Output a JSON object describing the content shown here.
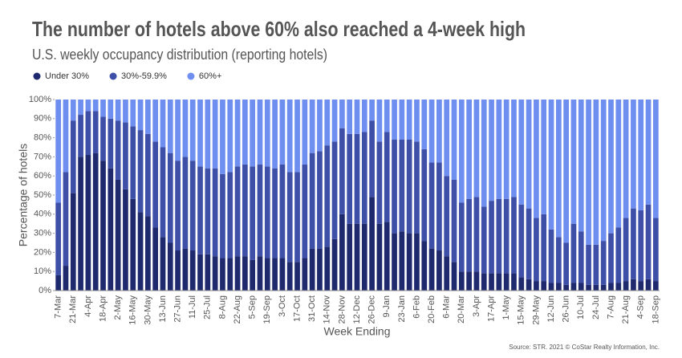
{
  "chart_data": {
    "type": "stacked_bar",
    "title": "The number of hotels above 60% also reached a 4-week high",
    "subtitle": "U.S. weekly occupancy distribution (reporting hotels)",
    "x_label": "Week Ending",
    "y_label": "Percentage of hotels",
    "source": "Source: STR. 2021 © CoStar Realty Information, Inc.",
    "categories": [
      "7-Mar",
      null,
      "21-Mar",
      null,
      "4-Apr",
      null,
      "18-Apr",
      null,
      "2-May",
      null,
      "16-May",
      null,
      "30-May",
      null,
      "13-Jun",
      null,
      "27-Jun",
      null,
      "11-Jul",
      null,
      "25-Jul",
      null,
      "8-Aug",
      null,
      "22-Aug",
      null,
      "5-Sep",
      null,
      "19-Sep",
      null,
      "3-Oct",
      null,
      "17-Oct",
      null,
      "31-Oct",
      null,
      "14-Nov",
      null,
      "28-Nov",
      null,
      "12-Dec",
      null,
      "26-Dec",
      null,
      "9-Jan",
      null,
      "23-Jan",
      null,
      "6-Feb",
      null,
      "20-Feb",
      null,
      "6-Mar",
      null,
      "20-Mar",
      null,
      "3-Apr",
      null,
      "17-Apr",
      null,
      "1-May",
      null,
      "15-May",
      null,
      "29-May",
      null,
      "12-Jun",
      null,
      "26-Jun",
      null,
      "10-Jul",
      null,
      "24-Jul",
      null,
      "7-Aug",
      null,
      "21-Aug",
      null,
      "4-Sep",
      null,
      "18-Sep"
    ],
    "series": [
      {
        "name": "Under 30%",
        "color": "#1f2a6e",
        "values": [
          8,
          13,
          51,
          70,
          71,
          72,
          68,
          64,
          58,
          53,
          48,
          41,
          39,
          33,
          28,
          25,
          21,
          22,
          21,
          19,
          19,
          18,
          17,
          17,
          18,
          18,
          16,
          18,
          17,
          17,
          17,
          15,
          15,
          17,
          22,
          22,
          23,
          27,
          40,
          35,
          35,
          35,
          49,
          35,
          36,
          30,
          31,
          30,
          30,
          26,
          22,
          21,
          18,
          15,
          10,
          10,
          10,
          9,
          9,
          9,
          9,
          9,
          7,
          6,
          5,
          5,
          4,
          4,
          3,
          4,
          4,
          3,
          3,
          3,
          4,
          4,
          5,
          6,
          5,
          6,
          5
        ]
      },
      {
        "name": "30%-59.9%",
        "color": "#3e4fa8",
        "values": [
          38,
          49,
          38,
          22,
          23,
          22,
          23,
          26,
          31,
          35,
          38,
          43,
          43,
          45,
          47,
          47,
          47,
          48,
          47,
          46,
          45,
          46,
          44,
          45,
          47,
          48,
          49,
          48,
          48,
          47,
          49,
          47,
          47,
          49,
          50,
          51,
          53,
          51,
          45,
          47,
          47,
          48,
          40,
          43,
          47,
          49,
          48,
          49,
          48,
          48,
          45,
          46,
          42,
          43,
          36,
          38,
          39,
          35,
          38,
          39,
          39,
          40,
          38,
          37,
          33,
          35,
          28,
          24,
          22,
          31,
          27,
          21,
          21,
          23,
          26,
          29,
          33,
          37,
          37,
          39,
          33
        ]
      },
      {
        "name": "60%+",
        "color": "#6e8ef0",
        "values": [
          54,
          38,
          11,
          8,
          6,
          6,
          9,
          10,
          11,
          12,
          14,
          16,
          18,
          22,
          25,
          28,
          32,
          30,
          32,
          35,
          36,
          36,
          39,
          38,
          35,
          34,
          35,
          34,
          35,
          36,
          34,
          38,
          38,
          34,
          28,
          27,
          24,
          22,
          15,
          18,
          18,
          17,
          11,
          22,
          17,
          21,
          21,
          21,
          22,
          26,
          33,
          33,
          40,
          42,
          54,
          52,
          51,
          56,
          53,
          52,
          52,
          51,
          55,
          57,
          62,
          60,
          68,
          72,
          75,
          65,
          69,
          76,
          76,
          74,
          70,
          67,
          62,
          57,
          58,
          55,
          62
        ]
      }
    ],
    "ylim": [
      0,
      100
    ],
    "yticks": [
      {
        "value": 0,
        "label": "0%"
      },
      {
        "value": 10,
        "label": "10%"
      },
      {
        "value": 20,
        "label": "20%"
      },
      {
        "value": 30,
        "label": "30%"
      },
      {
        "value": 40,
        "label": "40%"
      },
      {
        "value": 50,
        "label": "50%"
      },
      {
        "value": 60,
        "label": "60%"
      },
      {
        "value": 70,
        "label": "70%"
      },
      {
        "value": 80,
        "label": "80%"
      },
      {
        "value": 90,
        "label": "90%"
      },
      {
        "value": 100,
        "label": "100%"
      }
    ],
    "legend": "top-left"
  }
}
